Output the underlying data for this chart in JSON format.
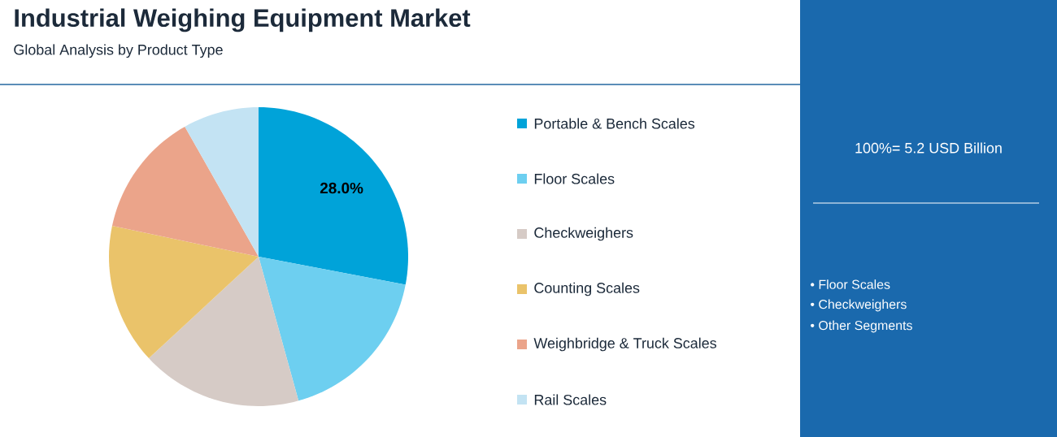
{
  "chart_data": {
    "type": "pie",
    "title": "Industrial Weighing Equipment Market",
    "subtitle": "Global Analysis by Product Type",
    "categories": [
      "Portable & Bench Scales",
      "Floor Scales",
      "Checkweighers",
      "Counting Scales",
      "Weighbridge & Truck Scales",
      "Rail Scales"
    ],
    "values": [
      28.0,
      17.7,
      17.4,
      15.2,
      13.5,
      8.2
    ],
    "colors": [
      "#00a3d9",
      "#6dcff0",
      "#d6cbc6",
      "#eac36a",
      "#eba48a",
      "#c3e3f3"
    ],
    "value_labels": [
      "28.0%",
      null,
      null,
      null,
      null,
      null
    ],
    "legend": "right",
    "annotations": [
      "100%= 5.2 USD Billion",
      "• Floor Scales",
      "• Checkweighers",
      "• Other Segments"
    ]
  }
}
